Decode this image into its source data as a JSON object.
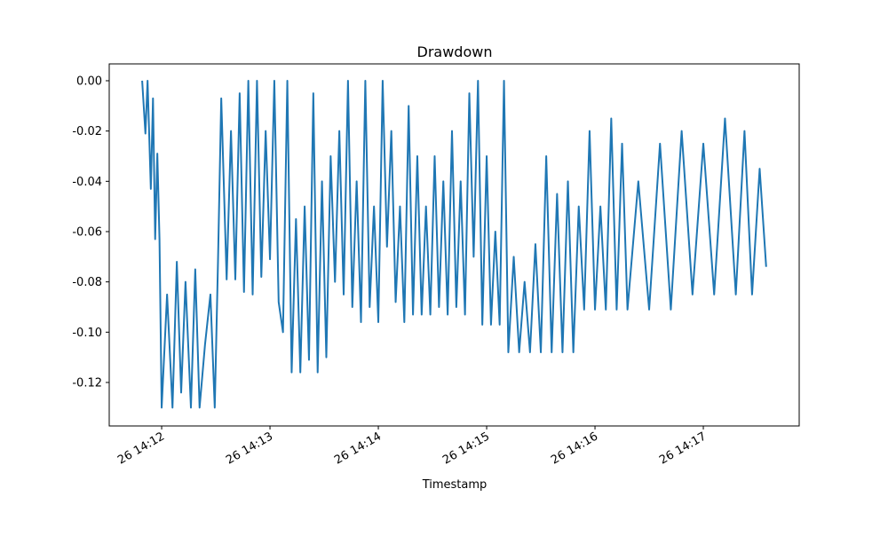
{
  "chart_data": {
    "type": "line",
    "title": "Drawdown",
    "x_label": "Timestamp",
    "color": "#1f77b4",
    "xlim": [
      11.516,
      17.885
    ],
    "xticks": [
      {
        "value": 12,
        "label": "26 14:12"
      },
      {
        "value": 13,
        "label": "26 14:13"
      },
      {
        "value": 14,
        "label": "26 14:14"
      },
      {
        "value": 15,
        "label": "26 14:15"
      },
      {
        "value": 16,
        "label": "26 14:16"
      },
      {
        "value": 17,
        "label": "26 14:17"
      }
    ],
    "ylim": [
      -0.1373,
      0.0067
    ],
    "yticks": [
      {
        "value": 0,
        "label": "0.00"
      },
      -0.02,
      -0.04,
      -0.06,
      -0.08,
      {
        "value": -0.1,
        "label": "-0.10"
      },
      -0.12
    ],
    "x": [
      11.82,
      11.85,
      11.87,
      11.9,
      11.92,
      11.94,
      11.96,
      11.98,
      12.0,
      12.05,
      12.1,
      12.14,
      12.18,
      12.22,
      12.27,
      12.31,
      12.35,
      12.4,
      12.45,
      12.49,
      12.52,
      12.55,
      12.6,
      12.64,
      12.68,
      12.72,
      12.76,
      12.8,
      12.84,
      12.88,
      12.92,
      12.96,
      13.0,
      13.04,
      13.08,
      13.12,
      13.16,
      13.2,
      13.24,
      13.28,
      13.32,
      13.36,
      13.4,
      13.44,
      13.48,
      13.52,
      13.56,
      13.6,
      13.64,
      13.68,
      13.72,
      13.76,
      13.8,
      13.84,
      13.88,
      13.92,
      13.96,
      14.0,
      14.04,
      14.08,
      14.12,
      14.16,
      14.2,
      14.24,
      14.28,
      14.32,
      14.36,
      14.4,
      14.44,
      14.48,
      14.52,
      14.56,
      14.6,
      14.64,
      14.68,
      14.72,
      14.76,
      14.8,
      14.84,
      14.88,
      14.92,
      14.96,
      15.0,
      15.04,
      15.08,
      15.12,
      15.16,
      15.2,
      15.25,
      15.3,
      15.35,
      15.4,
      15.45,
      15.5,
      15.55,
      15.6,
      15.65,
      15.7,
      15.75,
      15.8,
      15.85,
      15.9,
      15.95,
      16.0,
      16.05,
      16.1,
      16.15,
      16.2,
      16.25,
      16.3,
      16.4,
      16.5,
      16.6,
      16.7,
      16.8,
      16.9,
      17.0,
      17.1,
      17.2,
      17.3,
      17.38,
      17.45,
      17.52,
      17.58
    ],
    "values": [
      0,
      -0.021,
      0,
      -0.043,
      -0.007,
      -0.063,
      -0.029,
      -0.063,
      -0.13,
      -0.085,
      -0.13,
      -0.072,
      -0.124,
      -0.08,
      -0.13,
      -0.075,
      -0.13,
      -0.105,
      -0.085,
      -0.13,
      -0.072,
      -0.007,
      -0.079,
      -0.02,
      -0.079,
      -0.005,
      -0.084,
      0,
      -0.085,
      0,
      -0.078,
      -0.02,
      -0.071,
      0,
      -0.088,
      -0.1,
      0,
      -0.116,
      -0.055,
      -0.116,
      -0.05,
      -0.111,
      -0.005,
      -0.116,
      -0.04,
      -0.11,
      -0.03,
      -0.08,
      -0.02,
      -0.085,
      0,
      -0.09,
      -0.04,
      -0.096,
      0,
      -0.09,
      -0.05,
      -0.096,
      0,
      -0.066,
      -0.02,
      -0.088,
      -0.05,
      -0.096,
      -0.01,
      -0.093,
      -0.03,
      -0.093,
      -0.05,
      -0.093,
      -0.03,
      -0.09,
      -0.04,
      -0.093,
      -0.02,
      -0.09,
      -0.04,
      -0.093,
      -0.005,
      -0.07,
      0,
      -0.097,
      -0.03,
      -0.097,
      -0.06,
      -0.097,
      0,
      -0.108,
      -0.07,
      -0.108,
      -0.08,
      -0.108,
      -0.065,
      -0.108,
      -0.03,
      -0.108,
      -0.045,
      -0.108,
      -0.04,
      -0.108,
      -0.05,
      -0.091,
      -0.02,
      -0.091,
      -0.05,
      -0.091,
      -0.015,
      -0.091,
      -0.025,
      -0.091,
      -0.04,
      -0.091,
      -0.025,
      -0.091,
      -0.02,
      -0.085,
      -0.025,
      -0.085,
      -0.015,
      -0.085,
      -0.02,
      -0.085,
      -0.035,
      -0.074
    ]
  }
}
